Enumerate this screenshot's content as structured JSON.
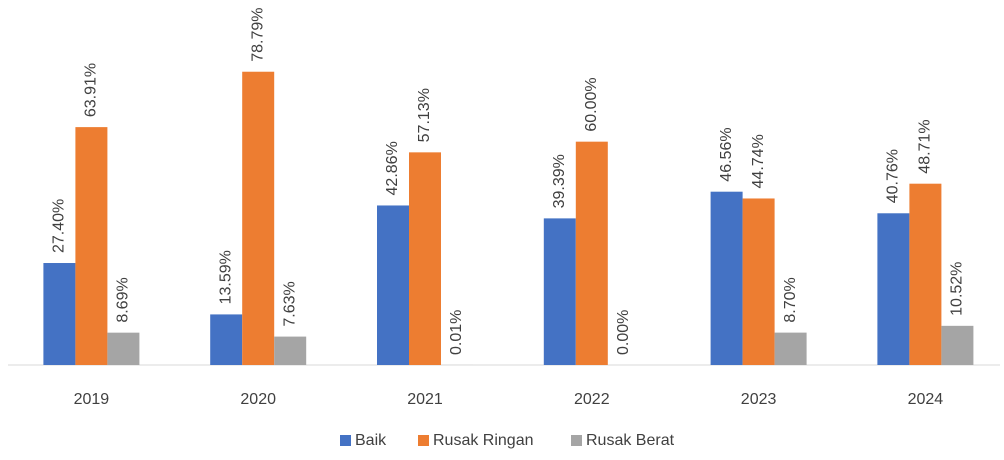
{
  "chart_data": {
    "type": "bar",
    "categories": [
      "2019",
      "2020",
      "2021",
      "2022",
      "2023",
      "2024"
    ],
    "series": [
      {
        "name": "Baik",
        "color": "#4472c4",
        "values": [
          27.4,
          13.59,
          42.86,
          39.39,
          46.56,
          40.76
        ],
        "value_labels": [
          "27.40%",
          "13.59%",
          "42.86%",
          "39.39%",
          "46.56%",
          "40.76%"
        ]
      },
      {
        "name": "Rusak Ringan",
        "color": "#ed7d31",
        "values": [
          63.91,
          78.79,
          57.13,
          60.0,
          44.74,
          48.71
        ],
        "value_labels": [
          "63.91%",
          "78.79%",
          "57.13%",
          "60.00%",
          "44.74%",
          "48.71%"
        ]
      },
      {
        "name": "Rusak Berat",
        "color": "#a5a5a5",
        "values": [
          8.69,
          7.63,
          0.01,
          0.0,
          8.7,
          10.52
        ],
        "value_labels": [
          "8.69%",
          "7.63%",
          "0.01%",
          "0.00%",
          "8.70%",
          "10.52%"
        ]
      }
    ],
    "ylim": [
      0,
      90
    ],
    "legend": "bottom"
  }
}
